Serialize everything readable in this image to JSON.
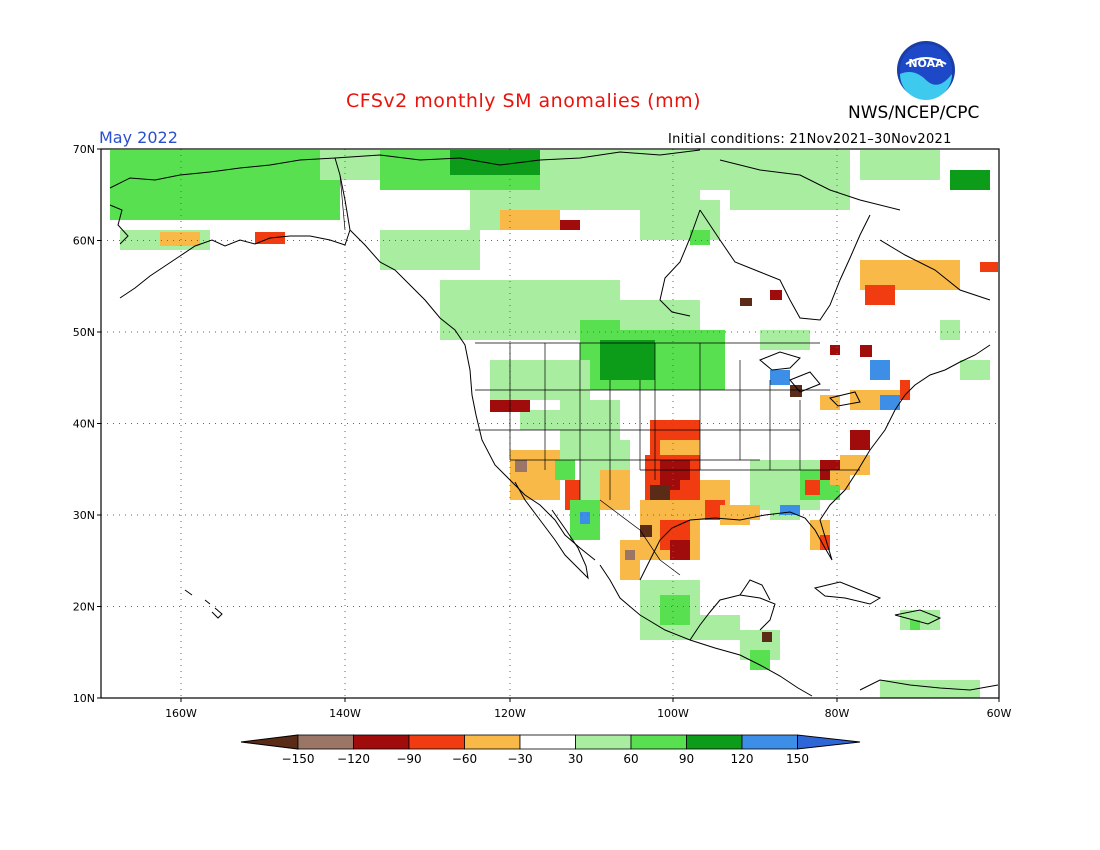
{
  "title": "CFSv2 monthly SM anomalies (mm)",
  "agency": "NWS/NCEP/CPC",
  "logo_text": "NOAA",
  "month": "May 2022",
  "initial_conditions": "Initial conditions: 21Nov2021–30Nov2021",
  "map": {
    "lat_labels": [
      "70N",
      "60N",
      "50N",
      "40N",
      "30N",
      "20N",
      "10N"
    ],
    "lon_labels": [
      "160W",
      "140W",
      "120W",
      "100W",
      "80W",
      "60W"
    ]
  },
  "colorbar": {
    "labels": [
      "−150",
      "−120",
      "−90",
      "−60",
      "−30",
      "30",
      "60",
      "90",
      "120",
      "150"
    ],
    "colors": [
      "#5a2b17",
      "#9b7565",
      "#a00c0c",
      "#f03c10",
      "#f9b948",
      "#ffffff",
      "#a9eea0",
      "#58e050",
      "#0c9c1a",
      "#3c8ee6",
      "#2e66d8"
    ]
  }
}
